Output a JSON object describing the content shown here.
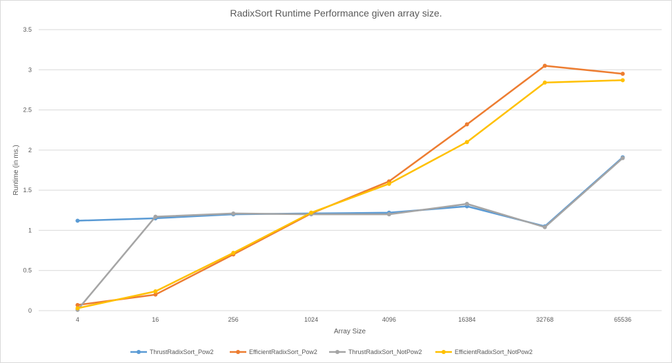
{
  "chart_data": {
    "type": "line",
    "title": "RadixSort Runtime Performance given array size.",
    "xlabel": "Array Size",
    "ylabel": "Runtime (in ms.)",
    "categories": [
      "4",
      "16",
      "256",
      "1024",
      "4096",
      "16384",
      "32768",
      "65536"
    ],
    "ylim": [
      0,
      3.5
    ],
    "yticks": [
      "0",
      "0.5",
      "1",
      "1.5",
      "2",
      "2.5",
      "3",
      "3.5"
    ],
    "grid": true,
    "legend": "bottom",
    "series": [
      {
        "name": "ThrustRadixSort_Pow2",
        "color": "#5b9bd5",
        "values": [
          1.12,
          1.15,
          1.2,
          1.21,
          1.22,
          1.3,
          1.05,
          1.91
        ]
      },
      {
        "name": "EfficientRadixSort_Pow2",
        "color": "#ed7d31",
        "values": [
          0.07,
          0.2,
          0.7,
          1.21,
          1.61,
          2.32,
          3.05,
          2.95
        ]
      },
      {
        "name": "ThrustRadixSort_NotPow2",
        "color": "#a5a5a5",
        "values": [
          0.01,
          1.17,
          1.21,
          1.2,
          1.2,
          1.33,
          1.04,
          1.9
        ]
      },
      {
        "name": "EfficientRadixSort_NotPow2",
        "color": "#ffc000",
        "values": [
          0.03,
          0.24,
          0.72,
          1.22,
          1.58,
          2.1,
          2.84,
          2.87
        ]
      }
    ]
  }
}
